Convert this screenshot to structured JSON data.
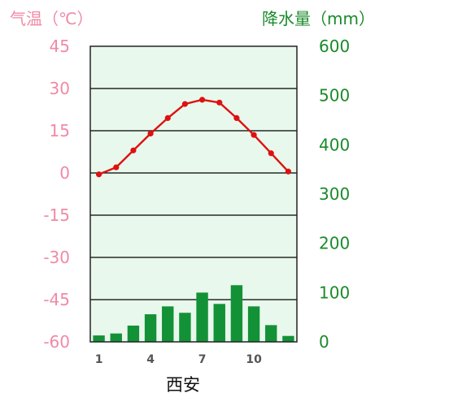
{
  "chart_data": {
    "type": "bar+line",
    "title": "西安",
    "left_axis_label": "气温（℃）",
    "right_axis_label": "降水量（mm）",
    "temp_ylim": [
      -60,
      45
    ],
    "temp_ticks": [
      "45",
      "30",
      "15",
      "0",
      "-15",
      "-30",
      "-45",
      "-60"
    ],
    "precip_ylim": [
      0,
      600
    ],
    "precip_ticks": [
      "600",
      "500",
      "400",
      "300",
      "200",
      "100",
      "0"
    ],
    "month_ticks": [
      {
        "month": 1,
        "label": "1"
      },
      {
        "month": 4,
        "label": "4"
      },
      {
        "month": 7,
        "label": "7"
      },
      {
        "month": 10,
        "label": "10"
      }
    ],
    "months": [
      1,
      2,
      3,
      4,
      5,
      6,
      7,
      8,
      9,
      10,
      11,
      12
    ],
    "temperature": [
      -0.5,
      2,
      8,
      14,
      19.5,
      24.5,
      26,
      25,
      19.5,
      13.5,
      7,
      0.5
    ],
    "precipitation": [
      13,
      17,
      33,
      56,
      72,
      59,
      100,
      77,
      115,
      72,
      34,
      12
    ],
    "colors": {
      "temp_line": "#dd1111",
      "bars": "#139137",
      "plot_bg": "#e8f8ec",
      "left_text": "#f08aa6",
      "right_text": "#1a8a2a"
    },
    "grid": true
  }
}
